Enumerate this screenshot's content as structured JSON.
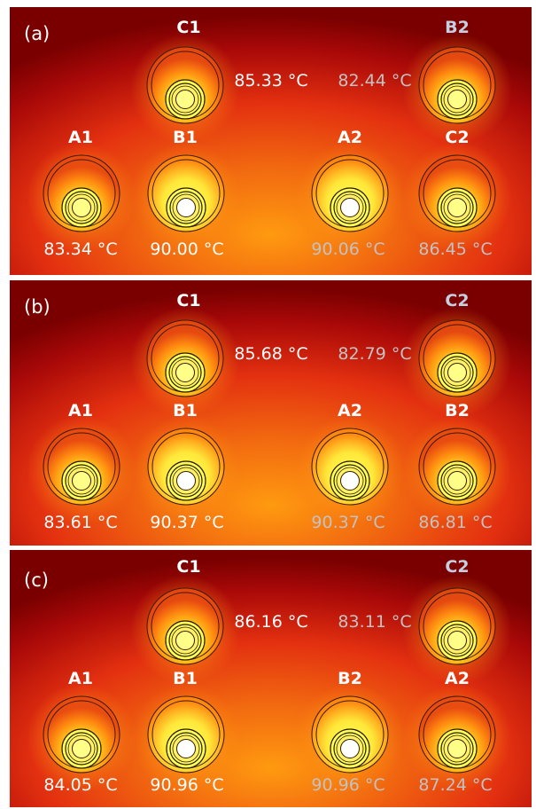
{
  "colors": {
    "hot": "#ffff55",
    "warm": "#ffa010",
    "mid": "#e33010",
    "cold": "#7a0000",
    "core_hot": "#ffffff",
    "core_warm": "#ffff88"
  },
  "panels": [
    {
      "label": "(a)",
      "cables": [
        {
          "name": "C1",
          "temp": "85.33 °C",
          "core": "warm"
        },
        {
          "name": "B2",
          "temp": "82.44 °C",
          "core": "warm",
          "light": true
        },
        {
          "name": "A1",
          "temp": "83.34 °C",
          "core": "warm"
        },
        {
          "name": "B1",
          "temp": "90.00 °C",
          "core": "hot"
        },
        {
          "name": "A2",
          "temp": "90.06 °C",
          "core": "hot"
        },
        {
          "name": "C2",
          "temp": "86.45 °C",
          "core": "warm"
        }
      ]
    },
    {
      "label": "(b)",
      "cables": [
        {
          "name": "C1",
          "temp": "85.68 °C",
          "core": "warm"
        },
        {
          "name": "C2",
          "temp": "82.79 °C",
          "core": "warm",
          "light": true
        },
        {
          "name": "A1",
          "temp": "83.61 °C",
          "core": "warm"
        },
        {
          "name": "B1",
          "temp": "90.37 °C",
          "core": "hot"
        },
        {
          "name": "A2",
          "temp": "90.37 °C",
          "core": "hot"
        },
        {
          "name": "B2",
          "temp": "86.81 °C",
          "core": "warm"
        }
      ]
    },
    {
      "label": "(c)",
      "cables": [
        {
          "name": "C1",
          "temp": "86.16 °C",
          "core": "warm"
        },
        {
          "name": "C2",
          "temp": "83.11 °C",
          "core": "warm",
          "light": true
        },
        {
          "name": "A1",
          "temp": "84.05 °C",
          "core": "warm"
        },
        {
          "name": "B1",
          "temp": "90.96 °C",
          "core": "hot"
        },
        {
          "name": "B2",
          "temp": "90.96 °C",
          "core": "hot"
        },
        {
          "name": "A2",
          "temp": "87.24 °C",
          "core": "warm"
        }
      ]
    }
  ]
}
